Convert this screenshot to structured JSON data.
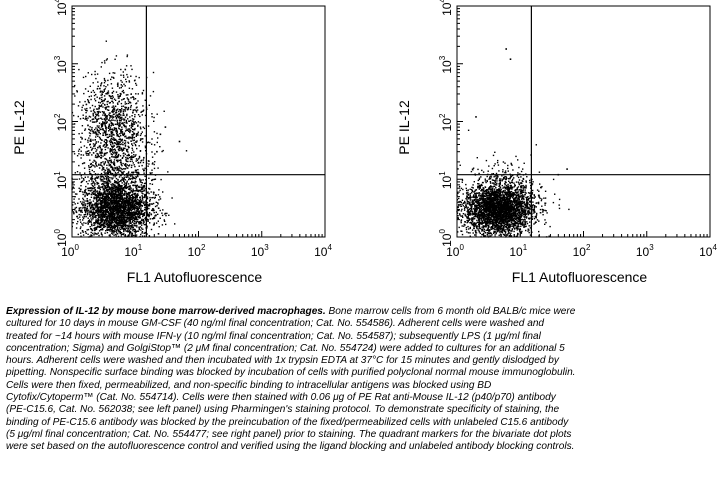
{
  "chart_data": [
    {
      "type": "scatter",
      "panel": "left",
      "xlabel": "FL1 Autofluorescence",
      "ylabel": "PE IL-12",
      "x_scale": "log",
      "y_scale": "log",
      "xlim": [
        1,
        10000
      ],
      "ylim": [
        1,
        10000
      ],
      "ticks": [
        {
          "base": "10",
          "exp": "0"
        },
        {
          "base": "10",
          "exp": "1"
        },
        {
          "base": "10",
          "exp": "2"
        },
        {
          "base": "10",
          "exp": "3"
        },
        {
          "base": "10",
          "exp": "4"
        }
      ],
      "quadrant_gate": {
        "x": 15,
        "y": 12
      },
      "populations": [
        {
          "description": "dense negative cluster",
          "x_center": 5,
          "y_center": 3,
          "x_spread": 0.28,
          "y_spread": 0.25,
          "count": 2600
        },
        {
          "description": "IL-12 positive events",
          "x_center": 4.5,
          "y_center": 80,
          "x_spread": 0.27,
          "y_spread": 0.45,
          "count": 1100
        },
        {
          "description": "intermediate events",
          "x_center": 5,
          "y_center": 12,
          "x_spread": 0.3,
          "y_spread": 0.3,
          "count": 500
        }
      ],
      "outliers": [
        {
          "x": 30,
          "y": 80
        },
        {
          "x": 50,
          "y": 45
        },
        {
          "x": 22,
          "y": 30
        },
        {
          "x": 25,
          "y": 60
        }
      ],
      "color": "#000000"
    },
    {
      "type": "scatter",
      "panel": "right",
      "xlabel": "FL1 Autofluorescence",
      "ylabel": "PE IL-12",
      "x_scale": "log",
      "y_scale": "log",
      "xlim": [
        1,
        10000
      ],
      "ylim": [
        1,
        10000
      ],
      "ticks": [
        {
          "base": "10",
          "exp": "0"
        },
        {
          "base": "10",
          "exp": "1"
        },
        {
          "base": "10",
          "exp": "2"
        },
        {
          "base": "10",
          "exp": "3"
        },
        {
          "base": "10",
          "exp": "4"
        }
      ],
      "quadrant_gate": {
        "x": 15,
        "y": 12
      },
      "populations": [
        {
          "description": "dense negative cluster",
          "x_center": 4.5,
          "y_center": 3,
          "x_spread": 0.27,
          "y_spread": 0.22,
          "count": 3000
        },
        {
          "description": "scattered events",
          "x_center": 6,
          "y_center": 6,
          "x_spread": 0.3,
          "y_spread": 0.3,
          "count": 300
        }
      ],
      "outliers": [
        {
          "x": 6,
          "y": 1800
        },
        {
          "x": 7,
          "y": 1200
        },
        {
          "x": 40,
          "y": 12
        },
        {
          "x": 2,
          "y": 120
        },
        {
          "x": 55,
          "y": 15
        }
      ],
      "color": "#000000"
    }
  ],
  "legend": {
    "title": "Expression of IL-12 by mouse bone marrow-derived macrophages.",
    "lines": [
      "Bone marrow cells from 6 month old BALB/c mice were",
      "cultured for 10 days in mouse GM-CSF (40 ng/ml final concentration; Cat. No. 554586). Adherent cells were washed and",
      "treated for ~14 hours with mouse IFN-γ (10 ng/ml final concentration; Cat. No. 554587); subsequently LPS (1 μg/ml final",
      "concentration; Sigma) and GolgiStop™ (2 μM final concentration; Cat. No. 554724) were added to cultures for an additional 5",
      "hours. Adherent cells were washed and then incubated with 1x trypsin EDTA at 37°C for 15 minutes and gently dislodged by",
      "pipetting. Nonspecific surface binding was blocked by incubation of cells with purified polyclonal normal mouse immunoglobulin.",
      "Cells were then fixed, permeabilized, and non-specific binding to intracellular antigens was blocked using BD",
      "Cytofix/Cytoperm™ (Cat. No. 554714). Cells were then stained with 0.06 μg of PE Rat anti-Mouse IL-12 (p40/p70) antibody",
      "(PE-C15.6, Cat. No. 562038; see left panel) using Pharmingen's staining protocol. To demonstrate specificity of staining, the",
      "binding of PE-C15.6 antibody was blocked by the preincubation of the fixed/permeabilized cells with unlabeled C15.6 antibody",
      "(5 μg/ml final concentration; Cat. No. 554477; see right panel) prior to staining. The quadrant markers for the bivariate dot plots",
      "were set based on the autofluorescence control and verified using the ligand blocking and unlabeled antibody blocking controls."
    ]
  }
}
